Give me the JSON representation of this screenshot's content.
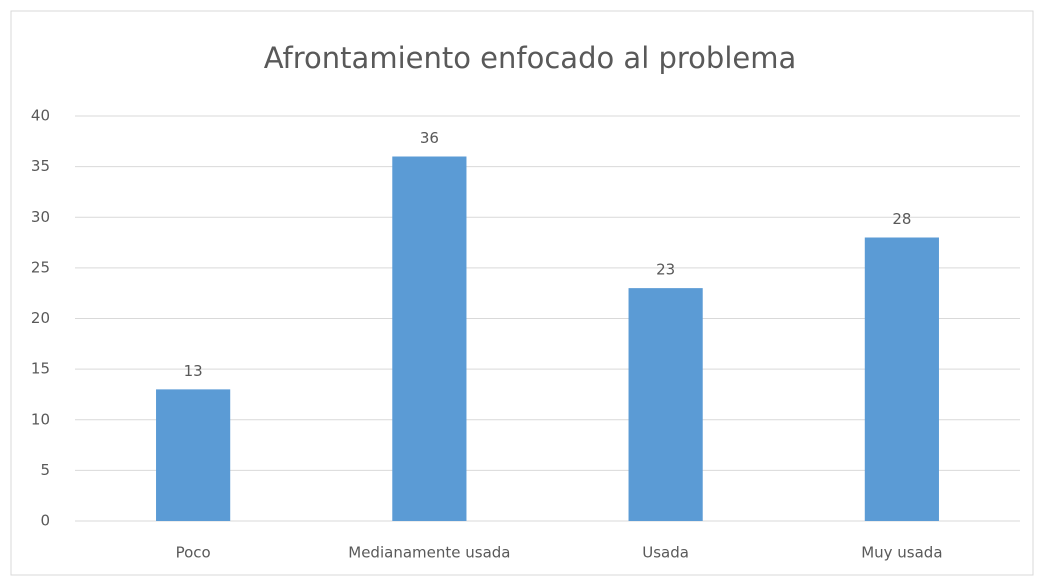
{
  "chart_data": {
    "type": "bar",
    "title": "Afrontamiento enfocado al problema",
    "categories": [
      "Poco",
      "Medianamente usada",
      "Usada",
      "Muy usada"
    ],
    "values": [
      13,
      36,
      23,
      28
    ],
    "color": "#5b9bd5",
    "ylim": [
      0,
      40
    ],
    "yticks": [
      0,
      5,
      10,
      15,
      20,
      25,
      30,
      35,
      40
    ],
    "grid": true
  }
}
